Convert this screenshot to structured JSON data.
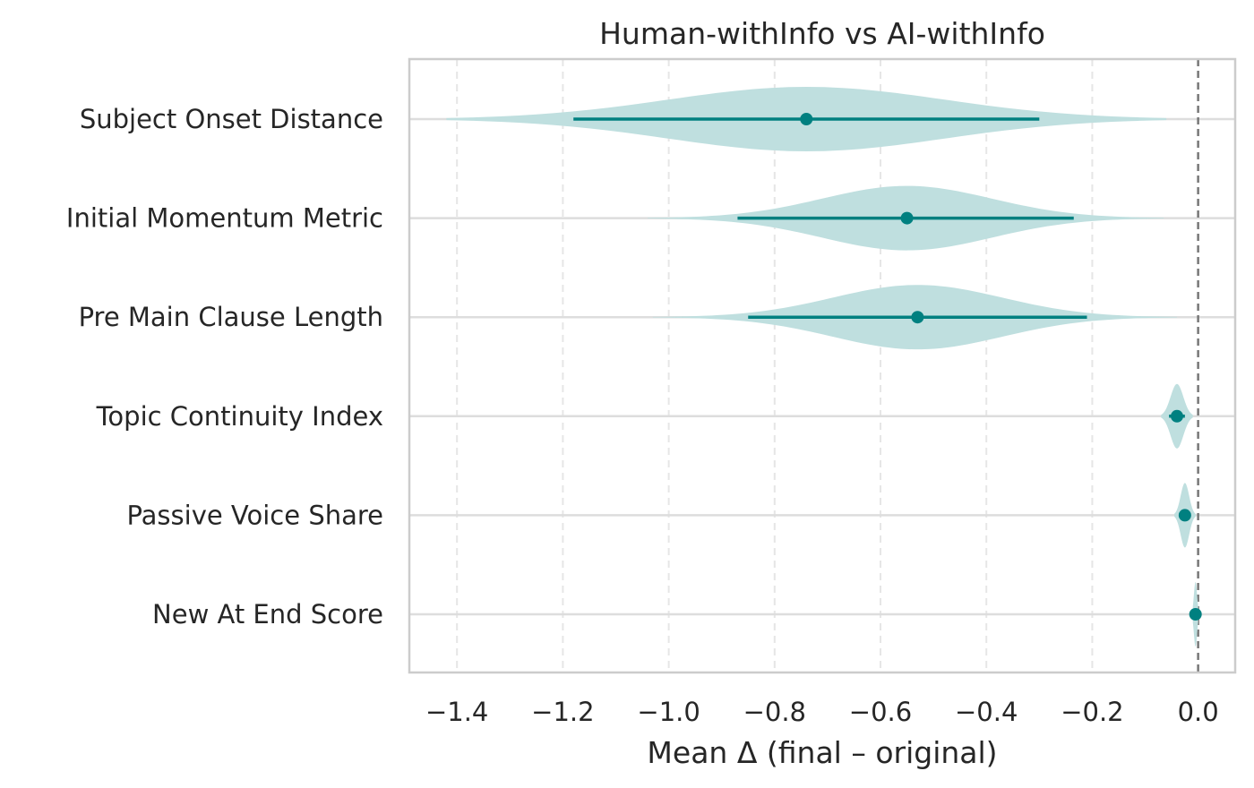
{
  "chart_data": {
    "type": "violin",
    "orientation": "horizontal",
    "title": "Human-withInfo vs AI-withInfo",
    "xlabel": "Mean Δ (final – original)",
    "ylabel": "",
    "xlim": [
      -1.49,
      0.07
    ],
    "xticks": [
      -1.4,
      -1.2,
      -1.0,
      -0.8,
      -0.6,
      -0.4,
      -0.2,
      0.0
    ],
    "xtick_labels": [
      "−1.4",
      "−1.2",
      "−1.0",
      "−0.8",
      "−0.6",
      "−0.4",
      "−0.2",
      "0.0"
    ],
    "reference_line": 0.0,
    "grid": "x dashed",
    "colors": {
      "violin_fill": "#bfdfdf",
      "marker": "#008080",
      "grid": "#e6e6e6",
      "row_line": "#dddddd",
      "frame": "#cccccc",
      "reference_line": "#777777"
    },
    "categories": [
      "Subject Onset Distance",
      "Initial Momentum Metric",
      "Pre Main Clause Length",
      "Topic Continuity Index",
      "Passive Voice Share",
      "New At End Score"
    ],
    "series": [
      {
        "name": "Subject Onset Distance",
        "mean": -0.74,
        "ci": [
          -1.18,
          -0.3
        ],
        "range": [
          -1.42,
          -0.06
        ],
        "sd": 0.26
      },
      {
        "name": "Initial Momentum Metric",
        "mean": -0.55,
        "ci": [
          -0.87,
          -0.235
        ],
        "range": [
          -1.04,
          -0.065
        ],
        "sd": 0.16
      },
      {
        "name": "Pre Main Clause Length",
        "mean": -0.53,
        "ci": [
          -0.85,
          -0.21
        ],
        "range": [
          -1.03,
          -0.04
        ],
        "sd": 0.16
      },
      {
        "name": "Topic Continuity Index",
        "mean": -0.04,
        "ci": [
          -0.055,
          -0.025
        ],
        "range": [
          -0.07,
          -0.01
        ],
        "sd": 0.012
      },
      {
        "name": "Passive Voice Share",
        "mean": -0.025,
        "ci": [
          -0.035,
          -0.015
        ],
        "range": [
          -0.045,
          -0.005
        ],
        "sd": 0.008
      },
      {
        "name": "New At End Score",
        "mean": -0.005,
        "ci": [
          -0.008,
          -0.002
        ],
        "range": [
          -0.01,
          0.0
        ],
        "sd": 0.003
      }
    ]
  }
}
